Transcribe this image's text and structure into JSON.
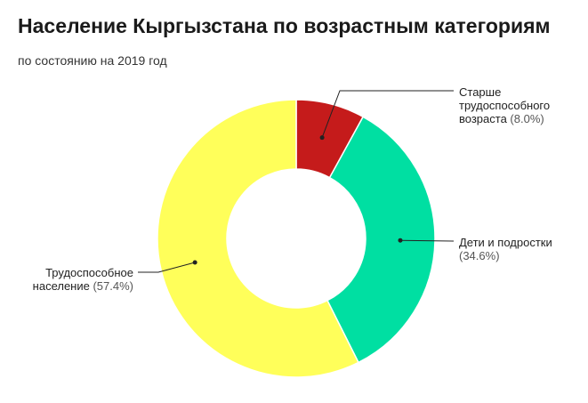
{
  "header": {
    "title": "Население Кыргызстана по возрастным категориям",
    "subtitle": "по состоянию на 2019 год"
  },
  "chart_data": {
    "type": "pie",
    "donut": true,
    "start_angle_deg": 0,
    "slices": [
      {
        "label_lines": [
          "Старше",
          "трудоспособного",
          "возраста"
        ],
        "value": 8.0,
        "pct_text": "(8.0%)",
        "color": "#c51b1b"
      },
      {
        "label_lines": [
          "Дети и подростки"
        ],
        "value": 34.6,
        "pct_text": "(34.6%)",
        "color": "#00dfa2"
      },
      {
        "label_lines": [
          "Трудоспособное",
          "население"
        ],
        "value": 57.4,
        "pct_text": "(57.4%)",
        "color": "#ffff5a"
      }
    ]
  }
}
